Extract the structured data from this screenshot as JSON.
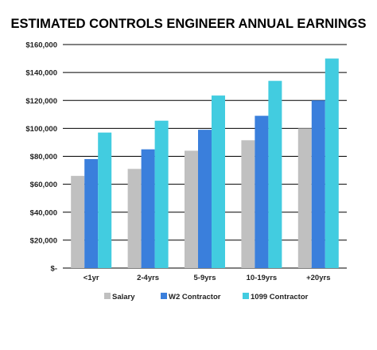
{
  "chart_data": {
    "type": "bar",
    "title": "ESTIMATED CONTROLS ENGINEER ANNUAL EARNINGS",
    "xlabel": "",
    "ylabel": "",
    "categories": [
      "<1yr",
      "2-4yrs",
      "5-9yrs",
      "10-19yrs",
      "+20yrs"
    ],
    "series": [
      {
        "name": "Salary",
        "color": "#c0c0c0",
        "values": [
          66000,
          71000,
          84000,
          91500,
          100000
        ]
      },
      {
        "name": "W2 Contractor",
        "color": "#3a7fdc",
        "values": [
          78000,
          85000,
          99000,
          109000,
          120000
        ]
      },
      {
        "name": "1099 Contractor",
        "color": "#42cce0",
        "values": [
          97000,
          105500,
          123500,
          134000,
          150000
        ]
      }
    ],
    "ylim": [
      0,
      160000
    ],
    "yticks": [
      0,
      20000,
      40000,
      60000,
      80000,
      100000,
      120000,
      140000,
      160000
    ],
    "ytick_labels": [
      "$-",
      "$20,000",
      "$40,000",
      "$60,000",
      "$80,000",
      "$100,000",
      "$120,000",
      "$140,000",
      "$160,000"
    ],
    "grid": true,
    "legend_position": "bottom-center"
  }
}
